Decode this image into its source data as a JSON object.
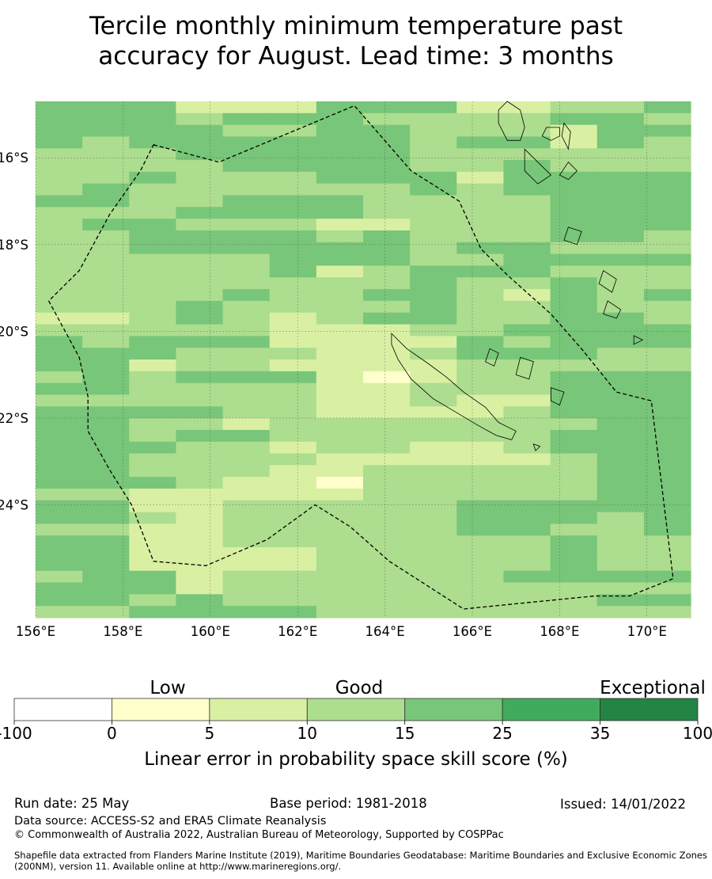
{
  "title": {
    "line1": "Tercile monthly minimum temperature past",
    "line2": "accuracy for August. Lead time: 3 months"
  },
  "map": {
    "lon_range": [
      156.0,
      171.0
    ],
    "lat_range": [
      -26.6,
      -14.7
    ],
    "lon_ticks": [
      {
        "value": 156,
        "label": "156°E"
      },
      {
        "value": 158,
        "label": "158°E"
      },
      {
        "value": 160,
        "label": "160°E"
      },
      {
        "value": 162,
        "label": "162°E"
      },
      {
        "value": 164,
        "label": "164°E"
      },
      {
        "value": 166,
        "label": "166°E"
      },
      {
        "value": 168,
        "label": "168°E"
      },
      {
        "value": 170,
        "label": "170°E"
      }
    ],
    "lat_ticks": [
      {
        "value": -16,
        "label": "16°S"
      },
      {
        "value": -18,
        "label": "18°S"
      },
      {
        "value": -20,
        "label": "20°S"
      },
      {
        "value": -22,
        "label": "22°S"
      },
      {
        "value": -24,
        "label": "24°S"
      }
    ],
    "grid_rows": [
      "44422244422334",
      "44434443333443",
      "44443344333244",
      "43444444344243",
      "33344444333333",
      "33334444334333",
      "33433344424444",
      "34333333434444",
      "44334443333444",
      "33344443333444",
      "34433322333444",
      "33444434333443",
      "33444444344333",
      "33333444334444",
      "33333423444333",
      "33333333433433",
      "33334334432434",
      "33343333433433",
      "22343234433443",
      "33333222334444",
      "43444222243444",
      "44433322344433",
      "44233222233333",
      "34344421233444",
      "44333322333444",
      "33333322322444",
      "44443322223444",
      "44332333333344",
      "44344333333444",
      "44433233223444",
      "44333322222344",
      "44333223333344",
      "44432213333344",
      "33222223333344",
      "44223333344444",
      "44323333344434",
      "33223333344334",
      "44223333333433",
      "44222233333433",
      "44222233333433",
      "34423333334444",
      "44423333333333",
      "44343333333344",
      "33444433333333"
    ],
    "boundary_eez": [
      [
        158.7,
        -15.7
      ],
      [
        160.2,
        -16.1
      ],
      [
        163.3,
        -14.8
      ],
      [
        164.6,
        -16.3
      ],
      [
        165.7,
        -17.0
      ],
      [
        166.2,
        -18.1
      ],
      [
        166.8,
        -18.7
      ],
      [
        167.8,
        -19.6
      ],
      [
        168.5,
        -20.4
      ],
      [
        169.3,
        -21.4
      ],
      [
        170.1,
        -21.6
      ],
      [
        170.6,
        -25.7
      ],
      [
        169.6,
        -26.1
      ],
      [
        168.8,
        -26.1
      ],
      [
        165.8,
        -26.4
      ],
      [
        164.1,
        -25.3
      ],
      [
        163.2,
        -24.5
      ],
      [
        162.4,
        -24.0
      ],
      [
        161.3,
        -24.8
      ],
      [
        159.9,
        -25.4
      ],
      [
        158.7,
        -25.3
      ],
      [
        158.2,
        -24.0
      ],
      [
        157.7,
        -23.2
      ],
      [
        157.2,
        -22.3
      ],
      [
        157.2,
        -21.5
      ],
      [
        157.0,
        -20.6
      ],
      [
        156.3,
        -19.3
      ],
      [
        157.0,
        -18.6
      ],
      [
        157.7,
        -17.3
      ],
      [
        158.4,
        -16.3
      ],
      [
        158.7,
        -15.7
      ]
    ],
    "coastlines": [
      [
        [
          164.15,
          -20.05
        ],
        [
          164.5,
          -20.4
        ],
        [
          165.0,
          -20.75
        ],
        [
          165.4,
          -21.05
        ],
        [
          165.8,
          -21.4
        ],
        [
          166.3,
          -21.75
        ],
        [
          166.6,
          -22.1
        ],
        [
          167.0,
          -22.3
        ],
        [
          166.9,
          -22.5
        ],
        [
          166.55,
          -22.4
        ],
        [
          166.1,
          -22.15
        ],
        [
          165.6,
          -21.85
        ],
        [
          165.1,
          -21.55
        ],
        [
          164.6,
          -21.1
        ],
        [
          164.3,
          -20.65
        ],
        [
          164.15,
          -20.3
        ],
        [
          164.15,
          -20.05
        ]
      ],
      [
        [
          166.8,
          -14.7
        ],
        [
          167.1,
          -14.9
        ],
        [
          167.2,
          -15.3
        ],
        [
          167.1,
          -15.6
        ],
        [
          166.8,
          -15.6
        ],
        [
          166.6,
          -15.2
        ],
        [
          166.6,
          -14.9
        ],
        [
          166.8,
          -14.7
        ]
      ],
      [
        [
          167.2,
          -15.8
        ],
        [
          167.5,
          -16.1
        ],
        [
          167.8,
          -16.4
        ],
        [
          167.5,
          -16.6
        ],
        [
          167.2,
          -16.3
        ],
        [
          167.2,
          -15.8
        ]
      ],
      [
        [
          168.1,
          -15.2
        ],
        [
          168.25,
          -15.4
        ],
        [
          168.2,
          -15.8
        ],
        [
          168.05,
          -15.5
        ],
        [
          168.1,
          -15.2
        ]
      ],
      [
        [
          167.7,
          -15.3
        ],
        [
          168.0,
          -15.3
        ],
        [
          168.0,
          -15.5
        ],
        [
          167.8,
          -15.6
        ],
        [
          167.6,
          -15.5
        ],
        [
          167.7,
          -15.3
        ]
      ],
      [
        [
          168.2,
          -16.1
        ],
        [
          168.4,
          -16.3
        ],
        [
          168.2,
          -16.5
        ],
        [
          168.0,
          -16.4
        ],
        [
          168.2,
          -16.1
        ]
      ],
      [
        [
          168.2,
          -17.6
        ],
        [
          168.5,
          -17.7
        ],
        [
          168.4,
          -18.0
        ],
        [
          168.1,
          -17.9
        ],
        [
          168.2,
          -17.6
        ]
      ],
      [
        [
          169.0,
          -18.6
        ],
        [
          169.3,
          -18.8
        ],
        [
          169.2,
          -19.1
        ],
        [
          168.9,
          -18.9
        ],
        [
          169.0,
          -18.6
        ]
      ],
      [
        [
          169.1,
          -19.3
        ],
        [
          169.4,
          -19.5
        ],
        [
          169.3,
          -19.7
        ],
        [
          169.0,
          -19.6
        ],
        [
          169.1,
          -19.3
        ]
      ],
      [
        [
          167.1,
          -20.6
        ],
        [
          167.4,
          -20.7
        ],
        [
          167.3,
          -21.1
        ],
        [
          167.0,
          -21.0
        ],
        [
          167.1,
          -20.6
        ]
      ],
      [
        [
          166.4,
          -20.4
        ],
        [
          166.6,
          -20.5
        ],
        [
          166.5,
          -20.8
        ],
        [
          166.3,
          -20.7
        ],
        [
          166.4,
          -20.4
        ]
      ],
      [
        [
          167.8,
          -21.3
        ],
        [
          168.1,
          -21.4
        ],
        [
          168.0,
          -21.7
        ],
        [
          167.8,
          -21.6
        ],
        [
          167.8,
          -21.3
        ]
      ],
      [
        [
          169.7,
          -20.1
        ],
        [
          169.9,
          -20.2
        ],
        [
          169.7,
          -20.3
        ],
        [
          169.7,
          -20.1
        ]
      ],
      [
        [
          167.4,
          -22.6
        ],
        [
          167.55,
          -22.65
        ],
        [
          167.45,
          -22.75
        ],
        [
          167.4,
          -22.6
        ]
      ]
    ]
  },
  "colorbar": {
    "categories": [
      {
        "label": "Low",
        "position": "left"
      },
      {
        "label": "Good",
        "position": "center"
      },
      {
        "label": "Exceptional",
        "position": "right"
      }
    ],
    "bins": [
      {
        "color": "#ffffff"
      },
      {
        "color": "#ffffcc"
      },
      {
        "color": "#d9f0a3"
      },
      {
        "color": "#addd8e"
      },
      {
        "color": "#78c679"
      },
      {
        "color": "#41ab5d"
      },
      {
        "color": "#238443"
      }
    ],
    "tick_labels": [
      "-100",
      "0",
      "5",
      "10",
      "15",
      "25",
      "35",
      "100"
    ],
    "xlabel": "Linear error in probability space skill score (%)"
  },
  "footer": {
    "run_date": "Run date: 25 May",
    "base_period": "Base period: 1981-2018",
    "issued": "Issued: 14/01/2022",
    "data_source": "Data source: ACCESS-S2 and ERA5 Climate Reanalysis",
    "copyright": "© Commonwealth of Australia 2022, Australian Bureau of Meteorology, Supported by COSPPac",
    "shapefile": "Shapefile data extracted from Flanders Marine Institute (2019), Maritime Boundaries Geodatabase: Maritime Boundaries and Exclusive Economic Zones (200NM), version 11. Available online at http://www.marineregions.org/."
  }
}
